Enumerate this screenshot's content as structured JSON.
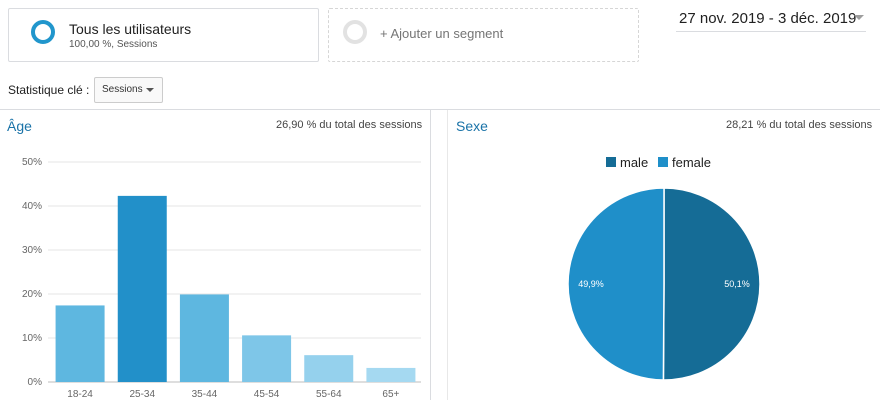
{
  "segments": {
    "all_users": {
      "name": "Tous les utilisateurs",
      "sub": "100,00 %, Sessions",
      "color": "#2196cc"
    },
    "add_segment_label": "+ Ajouter un segment"
  },
  "date_range": "27 nov. 2019 - 3 déc. 2019",
  "key_metric": {
    "label": "Statistique clé :",
    "selected": "Sessions"
  },
  "age_panel": {
    "title": "Âge",
    "share": "26,90 % du total des sessions"
  },
  "gender_panel": {
    "title": "Sexe",
    "share": "28,21 % du total des sessions"
  },
  "chart_data": [
    {
      "type": "bar",
      "title": "Âge",
      "categories": [
        "18-24",
        "25-34",
        "35-44",
        "45-54",
        "55-64",
        "65+"
      ],
      "values": [
        17.4,
        42.3,
        19.9,
        10.6,
        6.1,
        3.2
      ],
      "y_ticks": [
        "0%",
        "10%",
        "20%",
        "30%",
        "40%",
        "50%"
      ],
      "ylim": [
        0,
        50
      ],
      "grid": true,
      "colors": [
        "#5eb7e0",
        "#2290c9",
        "#5eb7e0",
        "#7ec6e8",
        "#95d1ed",
        "#a5d9f1"
      ]
    },
    {
      "type": "pie",
      "title": "Sexe",
      "slices": [
        {
          "name": "male",
          "value": 50.1,
          "label": "50,1%",
          "color": "#156c96"
        },
        {
          "name": "female",
          "value": 49.9,
          "label": "49,9%",
          "color": "#1f8fc9"
        }
      ],
      "legend_position": "top"
    }
  ]
}
